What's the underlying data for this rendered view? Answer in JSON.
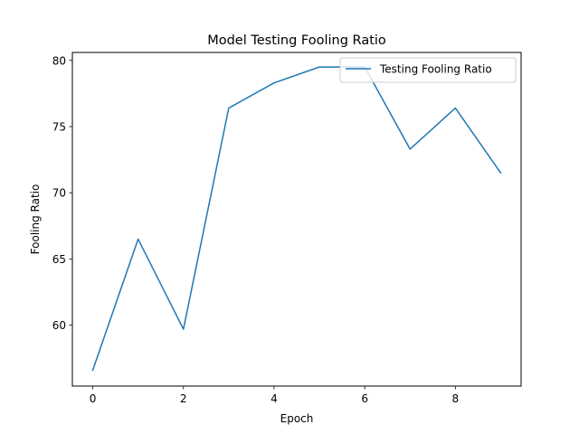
{
  "chart_data": {
    "type": "line",
    "title": "Model Testing Fooling Ratio",
    "xlabel": "Epoch",
    "ylabel": "Fooling Ratio",
    "x": [
      0,
      1,
      2,
      3,
      4,
      5,
      6,
      7,
      8,
      9
    ],
    "xlim": [
      -0.45,
      9.45
    ],
    "ylim": [
      55.4,
      80.6
    ],
    "xticks": [
      0,
      2,
      4,
      6,
      8
    ],
    "yticks": [
      60,
      65,
      70,
      75,
      80
    ],
    "grid": false,
    "legend_position": "upper-right",
    "series": [
      {
        "name": "Testing Fooling Ratio",
        "color": "#1f77b4",
        "values": [
          56.6,
          66.5,
          59.7,
          76.4,
          78.3,
          79.5,
          79.5,
          73.3,
          76.4,
          71.5
        ]
      }
    ]
  }
}
